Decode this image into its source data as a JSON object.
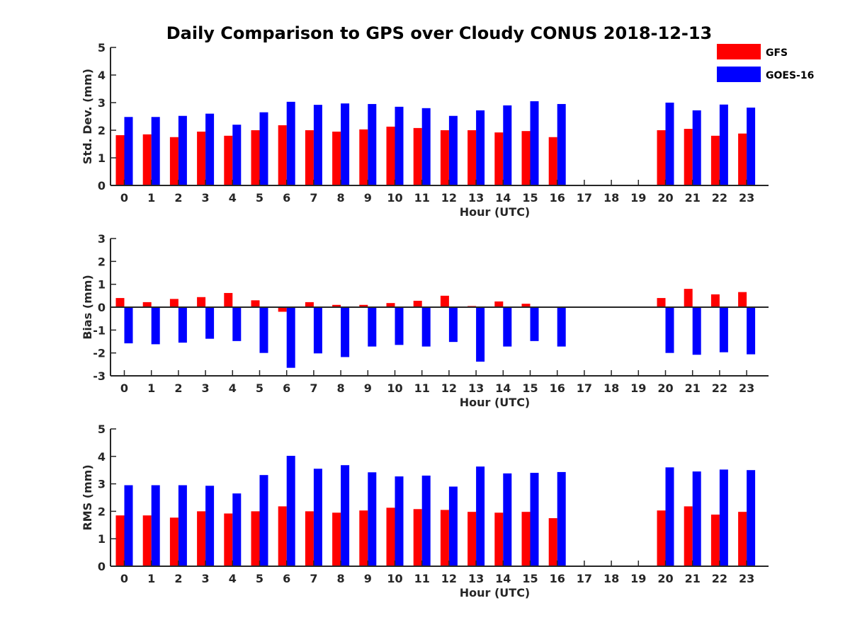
{
  "title": "Daily Comparison to GPS over Cloudy CONUS 2018-12-13",
  "legend": {
    "position": "top-right",
    "items": [
      {
        "label": "GFS",
        "color": "#ff0000"
      },
      {
        "label": "GOES-16",
        "color": "#0000ff"
      }
    ]
  },
  "chart_data": [
    {
      "type": "bar",
      "xlabel": "Hour (UTC)",
      "ylabel": "Std. Dev. (mm)",
      "ylim": [
        0,
        5
      ],
      "yticks": [
        0,
        1,
        2,
        3,
        4,
        5
      ],
      "categories": [
        "0",
        "1",
        "2",
        "3",
        "4",
        "5",
        "6",
        "7",
        "8",
        "9",
        "10",
        "11",
        "12",
        "13",
        "14",
        "15",
        "16",
        "17",
        "18",
        "19",
        "20",
        "21",
        "22",
        "23"
      ],
      "series": [
        {
          "name": "GFS",
          "color": "#ff0000",
          "values": [
            1.82,
            1.85,
            1.75,
            1.95,
            1.8,
            2.0,
            2.18,
            2.0,
            1.95,
            2.03,
            2.13,
            2.08,
            2.0,
            2.0,
            1.92,
            1.97,
            1.75,
            null,
            null,
            null,
            2.0,
            2.05,
            1.8,
            1.88
          ]
        },
        {
          "name": "GOES-16",
          "color": "#0000ff",
          "values": [
            2.48,
            2.48,
            2.52,
            2.6,
            2.2,
            2.65,
            3.03,
            2.92,
            2.97,
            2.95,
            2.85,
            2.8,
            2.52,
            2.72,
            2.9,
            3.05,
            2.95,
            null,
            null,
            null,
            3.0,
            2.72,
            2.93,
            2.82
          ]
        }
      ]
    },
    {
      "type": "bar",
      "xlabel": "Hour (UTC)",
      "ylabel": "Bias (mm)",
      "ylim": [
        -3,
        3
      ],
      "yticks": [
        -3,
        -2,
        -1,
        0,
        1,
        2,
        3
      ],
      "categories": [
        "0",
        "1",
        "2",
        "3",
        "4",
        "5",
        "6",
        "7",
        "8",
        "9",
        "10",
        "11",
        "12",
        "13",
        "14",
        "15",
        "16",
        "17",
        "18",
        "19",
        "20",
        "21",
        "22",
        "23"
      ],
      "series": [
        {
          "name": "GFS",
          "color": "#ff0000",
          "values": [
            0.4,
            0.22,
            0.36,
            0.44,
            0.62,
            0.3,
            -0.2,
            0.22,
            0.1,
            0.1,
            0.18,
            0.28,
            0.5,
            0.05,
            0.25,
            0.15,
            0.03,
            null,
            null,
            null,
            0.4,
            0.8,
            0.56,
            0.66
          ]
        },
        {
          "name": "GOES-16",
          "color": "#0000ff",
          "values": [
            -1.58,
            -1.62,
            -1.55,
            -1.38,
            -1.48,
            -2.0,
            -2.65,
            -2.02,
            -2.18,
            -1.72,
            -1.65,
            -1.72,
            -1.52,
            -2.38,
            -1.72,
            -1.48,
            -1.72,
            null,
            null,
            null,
            -2.0,
            -2.08,
            -1.97,
            -2.06
          ]
        }
      ]
    },
    {
      "type": "bar",
      "xlabel": "Hour (UTC)",
      "ylabel": "RMS (mm)",
      "ylim": [
        0,
        5
      ],
      "yticks": [
        0,
        1,
        2,
        3,
        4,
        5
      ],
      "categories": [
        "0",
        "1",
        "2",
        "3",
        "4",
        "5",
        "6",
        "7",
        "8",
        "9",
        "10",
        "11",
        "12",
        "13",
        "14",
        "15",
        "16",
        "17",
        "18",
        "19",
        "20",
        "21",
        "22",
        "23"
      ],
      "series": [
        {
          "name": "GFS",
          "color": "#ff0000",
          "values": [
            1.85,
            1.85,
            1.77,
            2.0,
            1.92,
            2.0,
            2.18,
            2.0,
            1.95,
            2.03,
            2.13,
            2.08,
            2.05,
            1.98,
            1.95,
            1.98,
            1.75,
            null,
            null,
            null,
            2.03,
            2.18,
            1.88,
            1.98
          ]
        },
        {
          "name": "GOES-16",
          "color": "#0000ff",
          "values": [
            2.95,
            2.95,
            2.95,
            2.93,
            2.65,
            3.32,
            4.02,
            3.55,
            3.68,
            3.42,
            3.27,
            3.3,
            2.9,
            3.63,
            3.38,
            3.4,
            3.43,
            null,
            null,
            null,
            3.6,
            3.45,
            3.52,
            3.5
          ]
        }
      ]
    }
  ]
}
